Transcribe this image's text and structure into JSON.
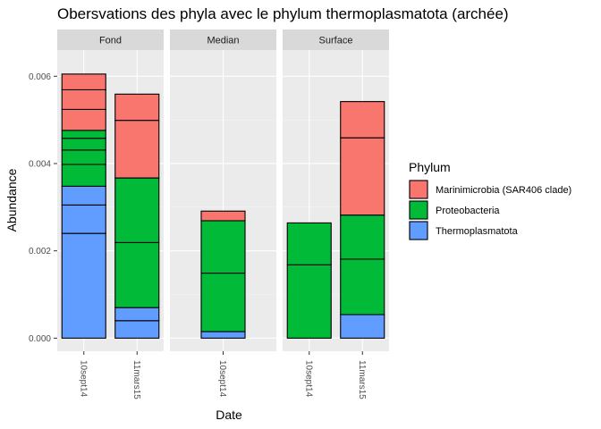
{
  "chart_data": {
    "type": "bar",
    "stacked": true,
    "title": "Obersvations des phyla avec le phylum thermoplasmatota (archée)",
    "xlabel": "Date",
    "ylabel": "Abundance",
    "ylim": [
      -0.0003,
      0.0066
    ],
    "y_ticks": [
      0,
      0.002,
      0.004,
      0.006
    ],
    "y_tick_labels": [
      "0.000",
      "0.002",
      "0.004",
      "0.006"
    ],
    "grid": true,
    "legend": {
      "title": "Phylum",
      "position": "right",
      "entries": [
        {
          "name": "Marinimicrobia (SAR406 clade)",
          "color": "#F8766D"
        },
        {
          "name": "Proteobacteria",
          "color": "#00BA38"
        },
        {
          "name": "Thermoplasmatota",
          "color": "#619CFF"
        }
      ]
    },
    "colors": {
      "Marinimicrobia (SAR406 clade)": "#F8766D",
      "Proteobacteria": "#00BA38",
      "Thermoplasmatota": "#619CFF",
      "panel_bg": "#EBEBEB",
      "strip_bg": "#D9D9D9",
      "grid_major": "#FFFFFF"
    },
    "facets": [
      {
        "name": "Fond",
        "categories": [
          "10sept14",
          "11mars15"
        ],
        "bars": [
          {
            "category": "10sept14",
            "segments": [
              {
                "phylum": "Thermoplasmatota",
                "value": 0.0024
              },
              {
                "phylum": "Thermoplasmatota",
                "value": 0.00065
              },
              {
                "phylum": "Thermoplasmatota",
                "value": 0.00043
              },
              {
                "phylum": "Proteobacteria",
                "value": 0.0005
              },
              {
                "phylum": "Proteobacteria",
                "value": 0.00033
              },
              {
                "phylum": "Proteobacteria",
                "value": 0.00027
              },
              {
                "phylum": "Proteobacteria",
                "value": 0.00018
              },
              {
                "phylum": "Marinimicrobia (SAR406 clade)",
                "value": 0.00048
              },
              {
                "phylum": "Marinimicrobia (SAR406 clade)",
                "value": 0.00045
              },
              {
                "phylum": "Marinimicrobia (SAR406 clade)",
                "value": 0.00036
              }
            ]
          },
          {
            "category": "11mars15",
            "segments": [
              {
                "phylum": "Thermoplasmatota",
                "value": 0.0004
              },
              {
                "phylum": "Thermoplasmatota",
                "value": 0.0003
              },
              {
                "phylum": "Proteobacteria",
                "value": 0.00149
              },
              {
                "phylum": "Proteobacteria",
                "value": 0.00148
              },
              {
                "phylum": "Marinimicrobia (SAR406 clade)",
                "value": 0.00132
              },
              {
                "phylum": "Marinimicrobia (SAR406 clade)",
                "value": 0.0006
              }
            ]
          }
        ]
      },
      {
        "name": "Median",
        "categories": [
          "10sept14"
        ],
        "bars": [
          {
            "category": "10sept14",
            "segments": [
              {
                "phylum": "Thermoplasmatota",
                "value": 0.00015
              },
              {
                "phylum": "Proteobacteria",
                "value": 0.00134
              },
              {
                "phylum": "Proteobacteria",
                "value": 0.0012
              },
              {
                "phylum": "Marinimicrobia (SAR406 clade)",
                "value": 0.00022
              }
            ]
          }
        ]
      },
      {
        "name": "Surface",
        "categories": [
          "10sept14",
          "11mars15"
        ],
        "bars": [
          {
            "category": "10sept14",
            "segments": [
              {
                "phylum": "Proteobacteria",
                "value": 0.00168
              },
              {
                "phylum": "Proteobacteria",
                "value": 0.00096
              }
            ]
          },
          {
            "category": "11mars15",
            "segments": [
              {
                "phylum": "Thermoplasmatota",
                "value": 0.00054
              },
              {
                "phylum": "Proteobacteria",
                "value": 0.00127
              },
              {
                "phylum": "Proteobacteria",
                "value": 0.00101
              },
              {
                "phylum": "Marinimicrobia (SAR406 clade)",
                "value": 0.00177
              },
              {
                "phylum": "Marinimicrobia (SAR406 clade)",
                "value": 0.00083
              }
            ]
          }
        ]
      }
    ]
  }
}
